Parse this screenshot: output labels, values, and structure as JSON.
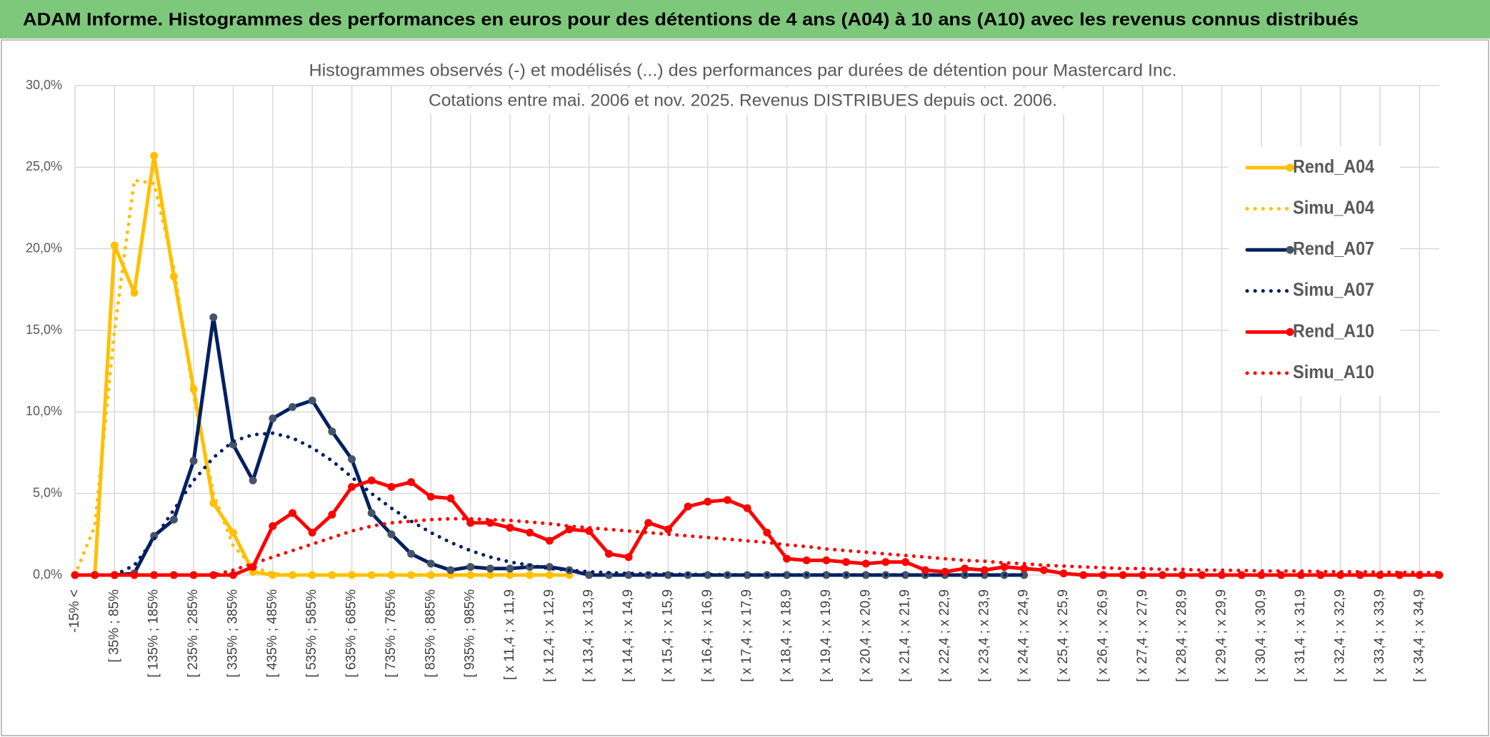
{
  "header": {
    "title": "ADAM Informe. Histogrammes des performances en euros pour des détentions de 4 ans (A04) à 10 ans (A10) avec les revenus connus distribués"
  },
  "chart_data": {
    "type": "line",
    "title": "Histogrammes observés (-) et modélisés (...) des performances par durées de détention pour Mastercard Inc.",
    "subtitle": "Cotations entre mai. 2006 et nov. 2025. Revenus DISTRIBUES depuis oct. 2006.",
    "categories": [
      "-15% <",
      null,
      "[ 35% ; 85%",
      null,
      "[ 135% ; 185%",
      null,
      "[ 235% ; 285%",
      null,
      "[ 335% ; 385%",
      null,
      "[ 435% ; 485%",
      null,
      "[ 535% ; 585%",
      null,
      "[ 635% ; 685%",
      null,
      "[ 735% ; 785%",
      null,
      "[ 835% ; 885%",
      null,
      "[ 935% ; 985%",
      null,
      "[ x 11,4 ; x 11,9",
      null,
      "[ x 12,4 ; x 12,9",
      null,
      "[ x 13,4 ; x 13,9",
      null,
      "[ x 14,4 ; x 14,9",
      null,
      "[ x 15,4 ; x 15,9",
      null,
      "[ x 16,4 ; x 16,9",
      null,
      "[ x 17,4 ; x 17,9",
      null,
      "[ x 18,4 ; x 18,9",
      null,
      "[ x 19,4 ; x 19,9",
      null,
      "[ x 20,4 ; x 20,9",
      null,
      "[ x 21,4 ; x 21,9",
      null,
      "[ x 22,4 ; x 22,9",
      null,
      "[ x 23,4 ; x 23,9",
      null,
      "[ x 24,4 ; x 24,9",
      null,
      "[ x 25,4 ; x 25,9",
      null,
      "[ x 26,4 ; x 26,9",
      null,
      "[ x 27,4 ; x 27,9",
      null,
      "[ x 28,4 ; x 28,9",
      null,
      "[ x 29,4 ; x 29,9",
      null,
      "[ x 30,4 ; x 30,9",
      null,
      "[ x 31,4 ; x 31,9",
      null,
      "[ x 32,4 ; x 32,9",
      null,
      "[ x 33,4 ; x 33,9",
      null,
      "[ x 34,4 ; x 34,9",
      null
    ],
    "series": [
      {
        "name": "Rend_A04",
        "color": "#FFC000",
        "style": "solid",
        "markers": true,
        "values": [
          0,
          0,
          20.2,
          17.3,
          25.7,
          18.3,
          11.4,
          4.4,
          2.6,
          0.2,
          0,
          0,
          0,
          0,
          0,
          0,
          0,
          0,
          0,
          0,
          0,
          0,
          0,
          0,
          0,
          0,
          null,
          null,
          null,
          null,
          null,
          null,
          null,
          null,
          null,
          null,
          null,
          null,
          null,
          null,
          null,
          null,
          null,
          null,
          null,
          null,
          null,
          null,
          null,
          null,
          null,
          null,
          null,
          null,
          null,
          null,
          null,
          null,
          null,
          null,
          null,
          null,
          null,
          null,
          null,
          null,
          null,
          null,
          null,
          null
        ]
      },
      {
        "name": "Simu_A04",
        "color": "#FFC000",
        "style": "dotted",
        "markers": false,
        "values": [
          0,
          3.0,
          15,
          24.2,
          24.0,
          18.8,
          11.0,
          5.0,
          1.8,
          0.5,
          0.1,
          0,
          0,
          null,
          null,
          null,
          null,
          null,
          null,
          null,
          null,
          null,
          null,
          null,
          null,
          null,
          null,
          null,
          null,
          null,
          null,
          null,
          null,
          null,
          null,
          null,
          null,
          null,
          null,
          null,
          null,
          null,
          null,
          null,
          null,
          null,
          null,
          null,
          null,
          null,
          null,
          null,
          null,
          null,
          null,
          null,
          null,
          null,
          null,
          null,
          null,
          null,
          null,
          null,
          null,
          null,
          null,
          null,
          null,
          null
        ]
      },
      {
        "name": "Rend_A07",
        "color": "#002060",
        "style": "solid",
        "markers": true,
        "values": [
          0,
          0,
          0,
          0.1,
          2.4,
          3.4,
          7.0,
          15.8,
          8.0,
          5.8,
          9.6,
          10.3,
          10.7,
          8.8,
          7.1,
          3.8,
          2.5,
          1.3,
          0.7,
          0.3,
          0.5,
          0.4,
          0.4,
          0.5,
          0.5,
          0.3,
          0,
          0,
          0,
          0,
          0,
          0,
          0,
          0,
          0,
          0,
          0,
          0,
          0,
          0,
          0,
          0,
          0,
          0,
          0,
          0,
          0,
          0,
          0,
          null,
          null,
          null,
          null,
          null,
          null,
          null,
          null,
          null,
          null,
          null,
          null,
          null,
          null,
          null,
          null,
          null,
          null,
          null,
          null,
          null
        ]
      },
      {
        "name": "Simu_A07",
        "color": "#002060",
        "style": "dotted",
        "markers": false,
        "values": [
          0,
          0,
          0,
          0.6,
          2.2,
          4.0,
          5.8,
          7.2,
          8.2,
          8.6,
          8.7,
          8.4,
          7.8,
          7.0,
          6.0,
          5.0,
          4.1,
          3.3,
          2.6,
          2.0,
          1.5,
          1.1,
          0.8,
          0.6,
          0.4,
          0.3,
          0.2,
          0.15,
          0.1,
          0.08,
          0.06,
          0.04,
          0.03,
          0.02,
          0.01,
          0.01,
          0.01,
          0.01,
          0.01,
          0.01,
          0.01,
          0.01,
          0.01,
          0.01,
          0.01,
          0.01,
          0.01,
          0.01,
          0.01,
          null,
          null,
          null,
          null,
          null,
          null,
          null,
          null,
          null,
          null,
          null,
          null,
          null,
          null,
          null,
          null,
          null,
          null,
          null,
          null,
          null
        ]
      },
      {
        "name": "Rend_A10",
        "color": "#FF0000",
        "style": "solid",
        "markers": true,
        "values": [
          0,
          0,
          0,
          0,
          0,
          0,
          0,
          0,
          0,
          0.5,
          3.0,
          3.8,
          2.6,
          3.7,
          5.4,
          5.8,
          5.4,
          5.7,
          4.8,
          4.7,
          3.2,
          3.2,
          2.9,
          2.6,
          2.1,
          2.8,
          2.7,
          1.3,
          1.1,
          3.2,
          2.8,
          4.2,
          4.5,
          4.6,
          4.1,
          2.6,
          1.0,
          0.9,
          0.9,
          0.8,
          0.7,
          0.8,
          0.8,
          0.3,
          0.2,
          0.4,
          0.3,
          0.5,
          0.4,
          0.3,
          0.1,
          0,
          0,
          0,
          0,
          0,
          0,
          0,
          0,
          0,
          0,
          0,
          0,
          0,
          0,
          0,
          0,
          0,
          0,
          0
        ]
      },
      {
        "name": "Simu_A10",
        "color": "#FF0000",
        "style": "dotted",
        "markers": false,
        "values": [
          0,
          0,
          0,
          0,
          0,
          0,
          0,
          0.0,
          0.3,
          0.7,
          1.1,
          1.5,
          1.9,
          2.3,
          2.7,
          3.0,
          3.2,
          3.3,
          3.4,
          3.45,
          3.45,
          3.4,
          3.35,
          3.25,
          3.15,
          3.0,
          2.9,
          2.8,
          2.7,
          2.6,
          2.5,
          2.4,
          2.3,
          2.2,
          2.1,
          2.0,
          1.85,
          1.75,
          1.6,
          1.5,
          1.4,
          1.3,
          1.2,
          1.1,
          1.0,
          0.9,
          0.85,
          0.75,
          0.7,
          0.6,
          0.55,
          0.5,
          0.45,
          0.4,
          0.4,
          0.35,
          0.35,
          0.3,
          0.3,
          0.28,
          0.26,
          0.25,
          0.24,
          0.22,
          0.2,
          0.2,
          0.18,
          0.17,
          0.16,
          0.15
        ]
      }
    ],
    "ylim": [
      0,
      30
    ],
    "yticks": [
      {
        "value": 0,
        "label": "0,0%"
      },
      {
        "value": 5,
        "label": "5,0%"
      },
      {
        "value": 10,
        "label": "10,0%"
      },
      {
        "value": 15,
        "label": "15,0%"
      },
      {
        "value": 20,
        "label": "20,0%"
      },
      {
        "value": 25,
        "label": "25,0%"
      },
      {
        "value": 30,
        "label": "30,0%"
      }
    ],
    "grid": true,
    "legend": "right"
  }
}
